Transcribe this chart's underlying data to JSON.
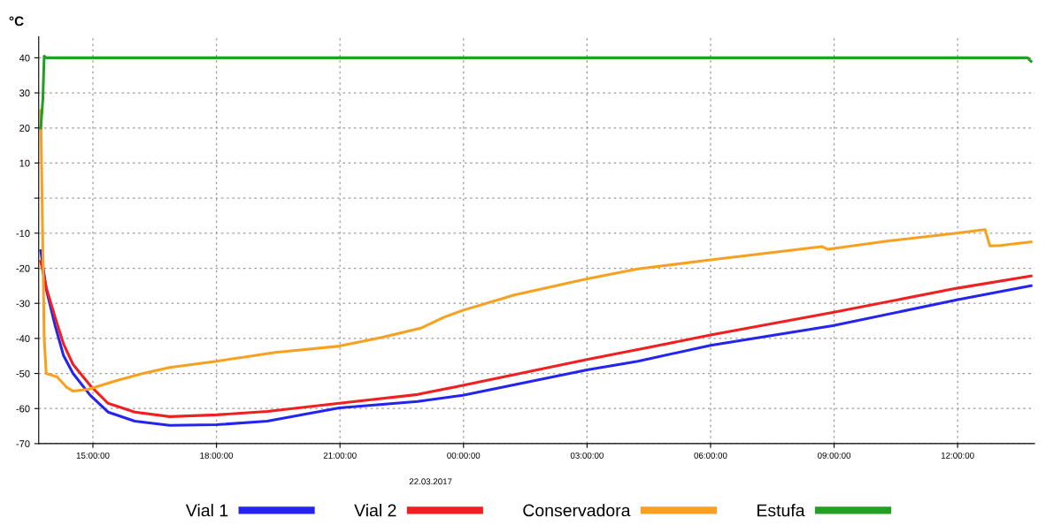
{
  "chart_data": {
    "type": "line",
    "ylabel": "°C",
    "xlim": [
      "2017-03-21T13:41",
      "2017-03-22T13:52"
    ],
    "ylim": [
      -70,
      46
    ],
    "xticks": [
      {
        "value": "2017-03-21T15:00",
        "label": "15:00:00"
      },
      {
        "value": "2017-03-21T18:00",
        "label": "18:00:00"
      },
      {
        "value": "2017-03-21T21:00",
        "label": "21:00:00"
      },
      {
        "value": "2017-03-22T00:00",
        "label": "00:00:00"
      },
      {
        "value": "2017-03-22T03:00",
        "label": "03:00:00"
      },
      {
        "value": "2017-03-22T06:00",
        "label": "06:00:00"
      },
      {
        "value": "2017-03-22T09:00",
        "label": "09:00:00"
      },
      {
        "value": "2017-03-22T12:00",
        "label": "12:00:00"
      }
    ],
    "yticks": [
      -70,
      -60,
      -50,
      -40,
      -30,
      -20,
      -10,
      {
        "value": 0,
        "label": null
      },
      10,
      20,
      30,
      40
    ],
    "grid": true,
    "legend": "bottom",
    "line_style": "solid",
    "marker": "none",
    "annotations": [
      "22.03.2017"
    ],
    "series": [
      {
        "name": "Vial 1",
        "color": "#2424f0",
        "x": [
          "2017-03-21T13:44",
          "2017-03-21T13:52",
          "2017-03-21T14:05",
          "2017-03-21T14:17",
          "2017-03-21T14:31",
          "2017-03-21T14:56",
          "2017-03-21T15:22",
          "2017-03-21T16:01",
          "2017-03-21T16:52",
          "2017-03-21T18:00",
          "2017-03-21T19:14",
          "2017-03-21T20:59",
          "2017-03-21T22:53",
          "2017-03-21T23:59",
          "2017-03-22T03:00",
          "2017-03-22T04:14",
          "2017-03-22T06:00",
          "2017-03-22T08:58",
          "2017-03-22T11:59",
          "2017-03-22T13:47"
        ],
        "values": [
          -15,
          -26,
          -36.4,
          -44.8,
          -50,
          -56.2,
          -61,
          -63.6,
          -64.8,
          -64.6,
          -63.6,
          -59.8,
          -58,
          -56.2,
          -49,
          -46.5,
          -42,
          -36.4,
          -29,
          -25
        ]
      },
      {
        "name": "Vial 2",
        "color": "#f02020",
        "x": [
          "2017-03-21T13:44",
          "2017-03-21T13:52",
          "2017-03-21T14:05",
          "2017-03-21T14:17",
          "2017-03-21T14:31",
          "2017-03-21T14:56",
          "2017-03-21T15:22",
          "2017-03-21T16:01",
          "2017-03-21T16:52",
          "2017-03-21T18:00",
          "2017-03-21T19:14",
          "2017-03-21T20:59",
          "2017-03-21T22:53",
          "2017-03-21T23:59",
          "2017-03-22T03:00",
          "2017-03-22T04:40",
          "2017-03-22T06:00",
          "2017-03-22T08:58",
          "2017-03-22T11:59",
          "2017-03-22T13:47"
        ],
        "values": [
          -18,
          -25.5,
          -34,
          -41.5,
          -47.4,
          -53.4,
          -58.5,
          -61,
          -62.3,
          -61.8,
          -60.8,
          -58.5,
          -56,
          -53.4,
          -46,
          -42.2,
          -39,
          -32.6,
          -25.7,
          -22.2
        ]
      },
      {
        "name": "Conservadora",
        "color": "#f8a020",
        "x": [
          "2017-03-21T13:44",
          "2017-03-21T13:49",
          "2017-03-21T13:52",
          "2017-03-21T14:08",
          "2017-03-21T14:22",
          "2017-03-21T14:31",
          "2017-03-21T14:53",
          "2017-03-21T15:35",
          "2017-03-21T16:13",
          "2017-03-21T16:52",
          "2017-03-21T18:00",
          "2017-03-21T19:26",
          "2017-03-21T20:59",
          "2017-03-21T22:01",
          "2017-03-21T22:59",
          "2017-03-21T23:31",
          "2017-03-21T23:59",
          "2017-03-22T01:14",
          "2017-03-22T03:00",
          "2017-03-22T04:14",
          "2017-03-22T06:00",
          "2017-03-22T07:40",
          "2017-03-22T08:42",
          "2017-03-22T08:51",
          "2017-03-22T10:15",
          "2017-03-22T11:59",
          "2017-03-22T12:40",
          "2017-03-22T12:47",
          "2017-03-22T13:02",
          "2017-03-22T13:47"
        ],
        "values": [
          25,
          -40,
          -50,
          -51,
          -54,
          -55,
          -54.5,
          -52,
          -50,
          -48.3,
          -46.5,
          -44,
          -42.2,
          -39.7,
          -37,
          -34,
          -32,
          -27.6,
          -23,
          -20.2,
          -17.6,
          -15.3,
          -13.8,
          -14.6,
          -12.3,
          -10,
          -9,
          -13.6,
          -13.5,
          -12.5
        ]
      },
      {
        "name": "Estufa",
        "color": "#22a022",
        "x": [
          "2017-03-21T13:44",
          "2017-03-21T13:47",
          "2017-03-21T13:49",
          "2017-03-21T13:52",
          "2017-03-21T15:00",
          "2017-03-21T18:00",
          "2017-03-21T21:00",
          "2017-03-22T00:00",
          "2017-03-22T03:00",
          "2017-03-22T06:00",
          "2017-03-22T09:00",
          "2017-03-22T12:00",
          "2017-03-22T13:42",
          "2017-03-22T13:47"
        ],
        "values": [
          20,
          28,
          40.5,
          40,
          40,
          40,
          40,
          40,
          40,
          40,
          40,
          40,
          40,
          39
        ]
      }
    ]
  }
}
